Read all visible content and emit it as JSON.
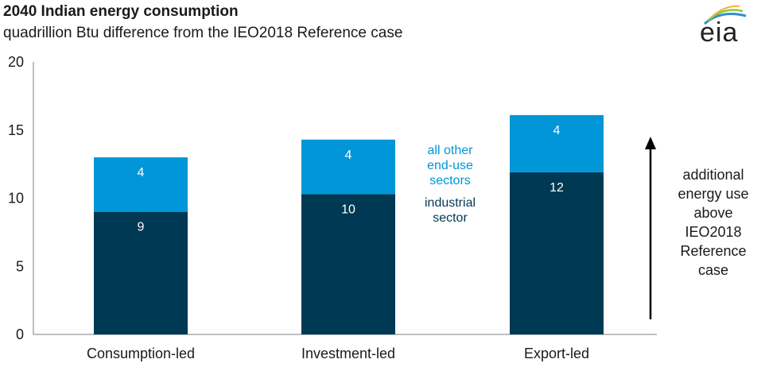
{
  "chart_data": {
    "type": "bar",
    "stacked": true,
    "title": "2040 Indian energy consumption",
    "subtitle": "quadrillion Btu difference from the IEO2018 Reference case",
    "categories": [
      "Consumption-led",
      "Investment-led",
      "Export-led"
    ],
    "series": [
      {
        "name": "industrial sector",
        "values": [
          9,
          10,
          12
        ],
        "color": "#003953",
        "plot_values": [
          9.0,
          10.3,
          11.9
        ],
        "labels": [
          "9",
          "10",
          "12"
        ]
      },
      {
        "name": "all other end-use sectors",
        "values": [
          4,
          4,
          4
        ],
        "color": "#0096d7",
        "plot_values": [
          4.0,
          4.0,
          4.2
        ],
        "labels": [
          "4",
          "4",
          "4"
        ]
      }
    ],
    "legend": [
      {
        "text": "all other end-use sectors",
        "lines": [
          "all other",
          "end-use",
          "sectors"
        ],
        "color": "#0096d7"
      },
      {
        "text": "industrial sector",
        "lines": [
          "industrial",
          "sector"
        ],
        "color": "#003953"
      }
    ],
    "ylim": [
      0,
      20
    ],
    "yticks": [
      "0",
      "5",
      "10",
      "15",
      "20"
    ],
    "grid": false,
    "annotation": {
      "lines": [
        "additional",
        "energy use",
        "above",
        "IEO2018",
        "Reference",
        "case"
      ],
      "arrow": "up"
    }
  },
  "logo": {
    "text": "eia",
    "name": "eia-logo"
  }
}
